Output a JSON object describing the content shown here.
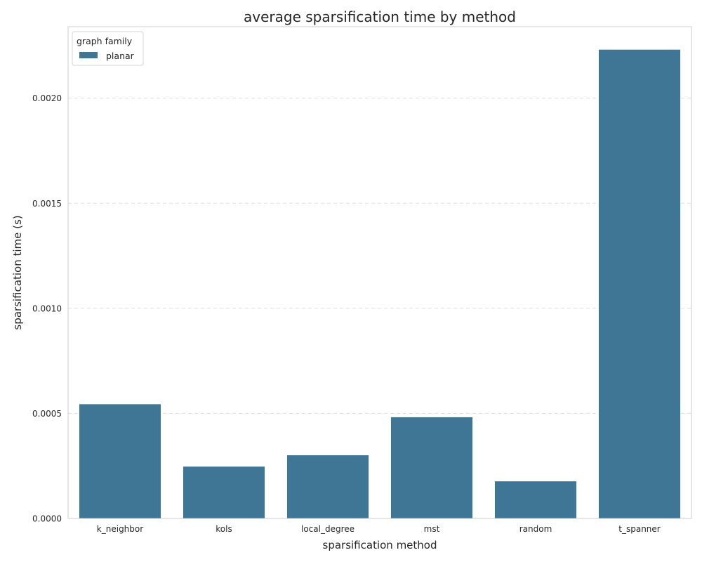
{
  "chart_data": {
    "type": "bar",
    "title": "average sparsification time by method",
    "xlabel": "sparsification method",
    "ylabel": "sparsification time (s)",
    "categories": [
      "k_neighbor",
      "kols",
      "local_degree",
      "mst",
      "random",
      "t_spanner"
    ],
    "series": [
      {
        "name": "planar",
        "color": "#3f7696",
        "values": [
          0.000545,
          0.000248,
          0.000302,
          0.000483,
          0.000178,
          0.002232
        ]
      }
    ],
    "ylim": [
      0,
      0.00234
    ],
    "yticks": [
      "0.0000",
      "0.0005",
      "0.0010",
      "0.0015",
      "0.0020"
    ],
    "ytick_values": [
      0,
      0.0005,
      0.001,
      0.0015,
      0.002
    ],
    "grid": true,
    "legend": {
      "title": "graph family",
      "position": "top-left"
    }
  }
}
